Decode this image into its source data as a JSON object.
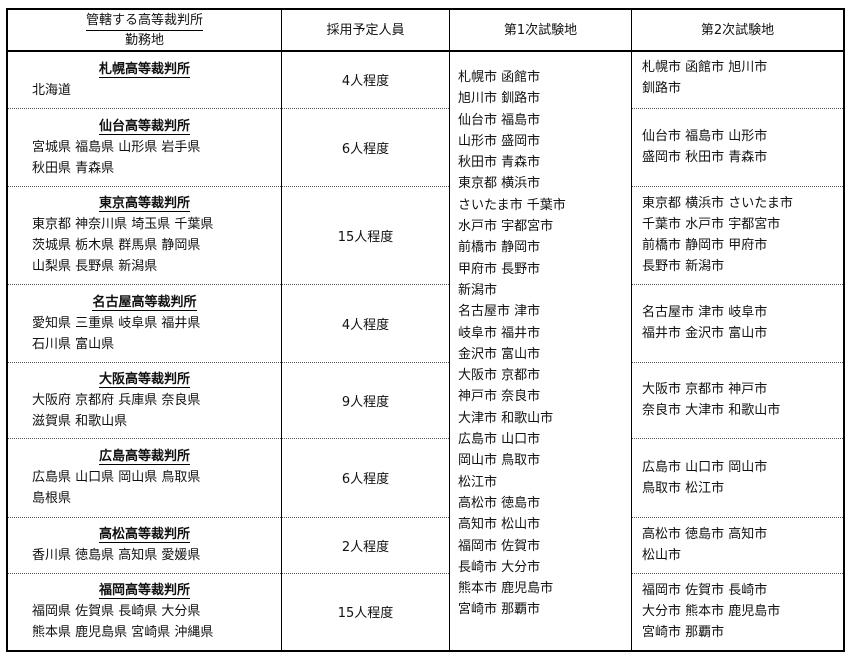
{
  "header": {
    "col1_title": "管轄する高等裁判所",
    "col1_subtitle": "勤務地",
    "col2": "採用予定人員",
    "col3": "第1次試験地",
    "col4": "第2次試験地"
  },
  "rows": [
    {
      "court": "札幌高等裁判所",
      "prefs": [
        "北海道"
      ],
      "count": "4人程度",
      "second": [
        "札幌市 函館市 旭川市",
        "釧路市"
      ]
    },
    {
      "court": "仙台高等裁判所",
      "prefs": [
        "宮城県 福島県 山形県 岩手県",
        "秋田県 青森県"
      ],
      "count": "6人程度",
      "second": [
        "仙台市 福島市 山形市",
        "盛岡市 秋田市 青森市"
      ]
    },
    {
      "court": "東京高等裁判所",
      "prefs": [
        "東京都 神奈川県 埼玉県 千葉県",
        "茨城県 栃木県 群馬県 静岡県",
        "山梨県 長野県 新潟県"
      ],
      "count": "15人程度",
      "second": [
        "東京都 横浜市 さいたま市",
        "千葉市 水戸市 宇都宮市",
        "前橋市 静岡市 甲府市",
        "長野市 新潟市"
      ]
    },
    {
      "court": "名古屋高等裁判所",
      "prefs": [
        "愛知県 三重県 岐阜県 福井県",
        "石川県 富山県"
      ],
      "count": "4人程度",
      "second": [
        "名古屋市 津市 岐阜市",
        "福井市 金沢市 富山市"
      ]
    },
    {
      "court": "大阪高等裁判所",
      "prefs": [
        "大阪府 京都府 兵庫県 奈良県",
        "滋賀県 和歌山県"
      ],
      "count": "9人程度",
      "second": [
        "大阪市 京都市 神戸市",
        "奈良市 大津市 和歌山市"
      ]
    },
    {
      "court": "広島高等裁判所",
      "prefs": [
        "広島県 山口県 岡山県 鳥取県",
        "島根県"
      ],
      "count": "6人程度",
      "second": [
        "広島市 山口市 岡山市",
        "鳥取市 松江市"
      ]
    },
    {
      "court": "高松高等裁判所",
      "prefs": [
        "香川県 徳島県 高知県 愛媛県"
      ],
      "count": "2人程度",
      "second": [
        "高松市 徳島市 高知市",
        "松山市"
      ]
    },
    {
      "court": "福岡高等裁判所",
      "prefs": [
        "福岡県 佐賀県 長崎県 大分県",
        "熊本県 鹿児島県 宮崎県 沖縄県"
      ],
      "count": "15人程度",
      "second": [
        "福岡市 佐賀市 長崎市",
        "大分市 熊本市 鹿児島市",
        "宮崎市 那覇市"
      ]
    }
  ],
  "first_exam_sites": [
    "札幌市 函館市",
    "旭川市 釧路市",
    "仙台市 福島市",
    "山形市 盛岡市",
    "秋田市 青森市",
    "東京都 横浜市",
    "さいたま市 千葉市",
    "水戸市 宇都宮市",
    "前橋市 静岡市",
    "甲府市 長野市",
    "新潟市",
    "名古屋市 津市",
    "岐阜市 福井市",
    "金沢市 富山市",
    "大阪市 京都市",
    "神戸市 奈良市",
    "大津市 和歌山市",
    "広島市 山口市",
    "岡山市 鳥取市",
    "松江市",
    "高松市 徳島市",
    "高知市 松山市",
    "福岡市 佐賀市",
    "長崎市 大分市",
    "熊本市 鹿児島市",
    "宮崎市 那覇市"
  ]
}
